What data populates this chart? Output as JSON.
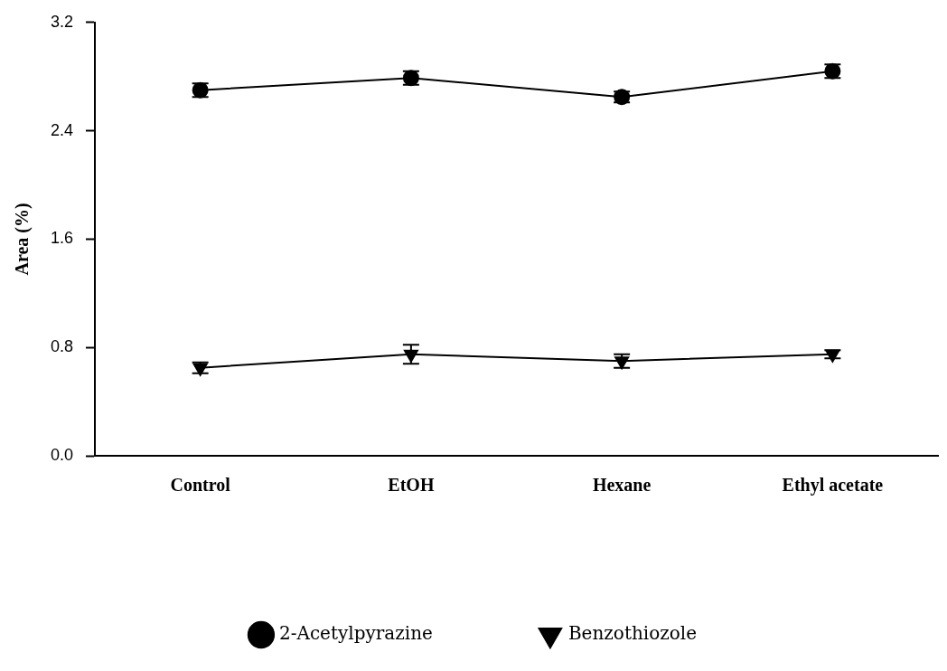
{
  "chart_data": {
    "type": "line",
    "ylabel": "Area (%)",
    "categories": [
      "Control",
      "EtOH",
      "Hexane",
      "Ethyl acetate"
    ],
    "series": [
      {
        "name": "2-Acetylpyrazine",
        "color": "#000000",
        "marker": "circle",
        "values": [
          2.7,
          2.79,
          2.65,
          2.84
        ],
        "errors": [
          0.05,
          0.05,
          0.04,
          0.05
        ]
      },
      {
        "name": "Benzothiozole",
        "color": "#000000",
        "marker": "triangle",
        "values": [
          0.65,
          0.75,
          0.7,
          0.75
        ],
        "errors": [
          0.04,
          0.07,
          0.05,
          0.03
        ]
      }
    ],
    "ylim": [
      0,
      3.2
    ],
    "yticks": [
      {
        "value": 0,
        "label": "0.0"
      },
      {
        "value": 0.8,
        "label": "0.8"
      },
      {
        "value": 1.6,
        "label": "1.6"
      },
      {
        "value": 2.4,
        "label": "2.4"
      },
      {
        "value": 3.2,
        "label": "3.2"
      }
    ],
    "grid": false,
    "legend": "bottom"
  }
}
